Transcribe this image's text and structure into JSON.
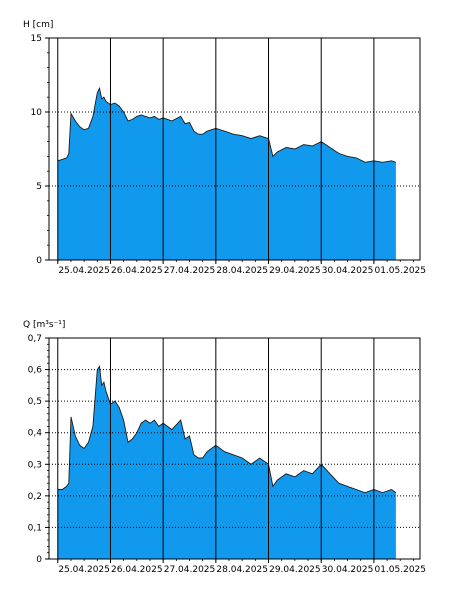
{
  "chart_data": [
    {
      "type": "area",
      "ylabel": "H [cm]",
      "ylim": [
        0,
        15
      ],
      "yticks": [
        0,
        5,
        10,
        15
      ],
      "ytick_labels": [
        "0",
        "5",
        "10",
        "15"
      ],
      "x_days": [
        "25.04.2025",
        "26.04.2025",
        "27.04.2025",
        "28.04.2025",
        "29.04.2025",
        "30.04.2025",
        "01.05.2025"
      ],
      "xlim": [
        "2025-04-24 20:00",
        "2025-05-01 21:00"
      ],
      "grid": "dotted horizontal at y ticks, solid vertical at midnight",
      "color": "#1199ee",
      "series": [
        {
          "x": [
            "2025-04-25 00:00",
            "2025-04-25 02:00",
            "2025-04-25 04:00",
            "2025-04-25 05:00",
            "2025-04-25 06:00",
            "2025-04-25 08:00",
            "2025-04-25 10:00",
            "2025-04-25 12:00",
            "2025-04-25 14:00",
            "2025-04-25 16:00",
            "2025-04-25 18:00",
            "2025-04-25 19:00",
            "2025-04-25 20:00",
            "2025-04-25 21:00",
            "2025-04-25 22:00",
            "2025-04-26 00:00",
            "2025-04-26 02:00",
            "2025-04-26 04:00",
            "2025-04-26 06:00",
            "2025-04-26 08:00",
            "2025-04-26 10:00",
            "2025-04-26 12:00",
            "2025-04-26 14:00",
            "2025-04-26 16:00",
            "2025-04-26 18:00",
            "2025-04-26 20:00",
            "2025-04-26 22:00",
            "2025-04-27 00:00",
            "2025-04-27 04:00",
            "2025-04-27 08:00",
            "2025-04-27 10:00",
            "2025-04-27 12:00",
            "2025-04-27 14:00",
            "2025-04-27 16:00",
            "2025-04-27 18:00",
            "2025-04-27 20:00",
            "2025-04-28 00:00",
            "2025-04-28 04:00",
            "2025-04-28 08:00",
            "2025-04-28 12:00",
            "2025-04-28 16:00",
            "2025-04-28 20:00",
            "2025-04-28 22:00",
            "2025-04-29 00:00",
            "2025-04-29 02:00",
            "2025-04-29 04:00",
            "2025-04-29 08:00",
            "2025-04-29 12:00",
            "2025-04-29 16:00",
            "2025-04-29 20:00",
            "2025-04-30 00:00",
            "2025-04-30 04:00",
            "2025-04-30 08:00",
            "2025-04-30 12:00",
            "2025-04-30 16:00",
            "2025-04-30 20:00",
            "2025-05-01 00:00",
            "2025-05-01 04:00",
            "2025-05-01 08:00",
            "2025-05-01 10:00"
          ],
          "values": [
            6.7,
            6.8,
            6.9,
            7.2,
            9.9,
            9.4,
            9.0,
            8.8,
            8.9,
            9.7,
            11.3,
            11.6,
            10.9,
            11.0,
            10.7,
            10.5,
            10.6,
            10.4,
            10.0,
            9.4,
            9.5,
            9.7,
            9.8,
            9.7,
            9.6,
            9.7,
            9.5,
            9.6,
            9.4,
            9.7,
            9.2,
            9.3,
            8.7,
            8.5,
            8.5,
            8.7,
            8.9,
            8.7,
            8.5,
            8.4,
            8.2,
            8.4,
            8.3,
            8.2,
            7.0,
            7.3,
            7.6,
            7.5,
            7.8,
            7.7,
            8.0,
            7.6,
            7.2,
            7.0,
            6.9,
            6.6,
            6.7,
            6.6,
            6.7,
            6.6
          ]
        }
      ]
    },
    {
      "type": "area",
      "ylabel": "Q [m³s⁻¹]",
      "ylim": [
        0,
        0.7
      ],
      "yticks": [
        0,
        0.1,
        0.2,
        0.3,
        0.4,
        0.5,
        0.6,
        0.7
      ],
      "ytick_labels": [
        "0",
        "0,1",
        "0,2",
        "0,3",
        "0,4",
        "0,5",
        "0,6",
        "0,7"
      ],
      "x_days": [
        "25.04.2025",
        "26.04.2025",
        "27.04.2025",
        "28.04.2025",
        "29.04.2025",
        "30.04.2025",
        "01.05.2025"
      ],
      "xlim": [
        "2025-04-24 20:00",
        "2025-05-01 21:00"
      ],
      "grid": "dotted horizontal at y ticks, solid vertical at midnight",
      "color": "#1199ee",
      "series": [
        {
          "x": [
            "2025-04-25 00:00",
            "2025-04-25 02:00",
            "2025-04-25 04:00",
            "2025-04-25 05:00",
            "2025-04-25 06:00",
            "2025-04-25 08:00",
            "2025-04-25 10:00",
            "2025-04-25 12:00",
            "2025-04-25 14:00",
            "2025-04-25 16:00",
            "2025-04-25 18:00",
            "2025-04-25 19:00",
            "2025-04-25 20:00",
            "2025-04-25 21:00",
            "2025-04-25 22:00",
            "2025-04-26 00:00",
            "2025-04-26 02:00",
            "2025-04-26 04:00",
            "2025-04-26 06:00",
            "2025-04-26 08:00",
            "2025-04-26 10:00",
            "2025-04-26 12:00",
            "2025-04-26 14:00",
            "2025-04-26 16:00",
            "2025-04-26 18:00",
            "2025-04-26 20:00",
            "2025-04-26 22:00",
            "2025-04-27 00:00",
            "2025-04-27 04:00",
            "2025-04-27 08:00",
            "2025-04-27 10:00",
            "2025-04-27 12:00",
            "2025-04-27 14:00",
            "2025-04-27 16:00",
            "2025-04-27 18:00",
            "2025-04-27 20:00",
            "2025-04-28 00:00",
            "2025-04-28 04:00",
            "2025-04-28 08:00",
            "2025-04-28 12:00",
            "2025-04-28 16:00",
            "2025-04-28 20:00",
            "2025-04-28 22:00",
            "2025-04-29 00:00",
            "2025-04-29 02:00",
            "2025-04-29 04:00",
            "2025-04-29 08:00",
            "2025-04-29 12:00",
            "2025-04-29 16:00",
            "2025-04-29 20:00",
            "2025-04-30 00:00",
            "2025-04-30 04:00",
            "2025-04-30 08:00",
            "2025-04-30 12:00",
            "2025-04-30 16:00",
            "2025-04-30 20:00",
            "2025-05-01 00:00",
            "2025-05-01 04:00",
            "2025-05-01 08:00",
            "2025-05-01 10:00"
          ],
          "values": [
            0.22,
            0.22,
            0.23,
            0.24,
            0.45,
            0.39,
            0.36,
            0.35,
            0.37,
            0.42,
            0.6,
            0.61,
            0.55,
            0.56,
            0.53,
            0.49,
            0.5,
            0.48,
            0.44,
            0.37,
            0.38,
            0.4,
            0.43,
            0.44,
            0.43,
            0.44,
            0.42,
            0.43,
            0.41,
            0.44,
            0.38,
            0.39,
            0.33,
            0.32,
            0.32,
            0.34,
            0.36,
            0.34,
            0.33,
            0.32,
            0.3,
            0.32,
            0.31,
            0.3,
            0.23,
            0.25,
            0.27,
            0.26,
            0.28,
            0.27,
            0.3,
            0.27,
            0.24,
            0.23,
            0.22,
            0.21,
            0.22,
            0.21,
            0.22,
            0.21
          ]
        }
      ]
    }
  ]
}
